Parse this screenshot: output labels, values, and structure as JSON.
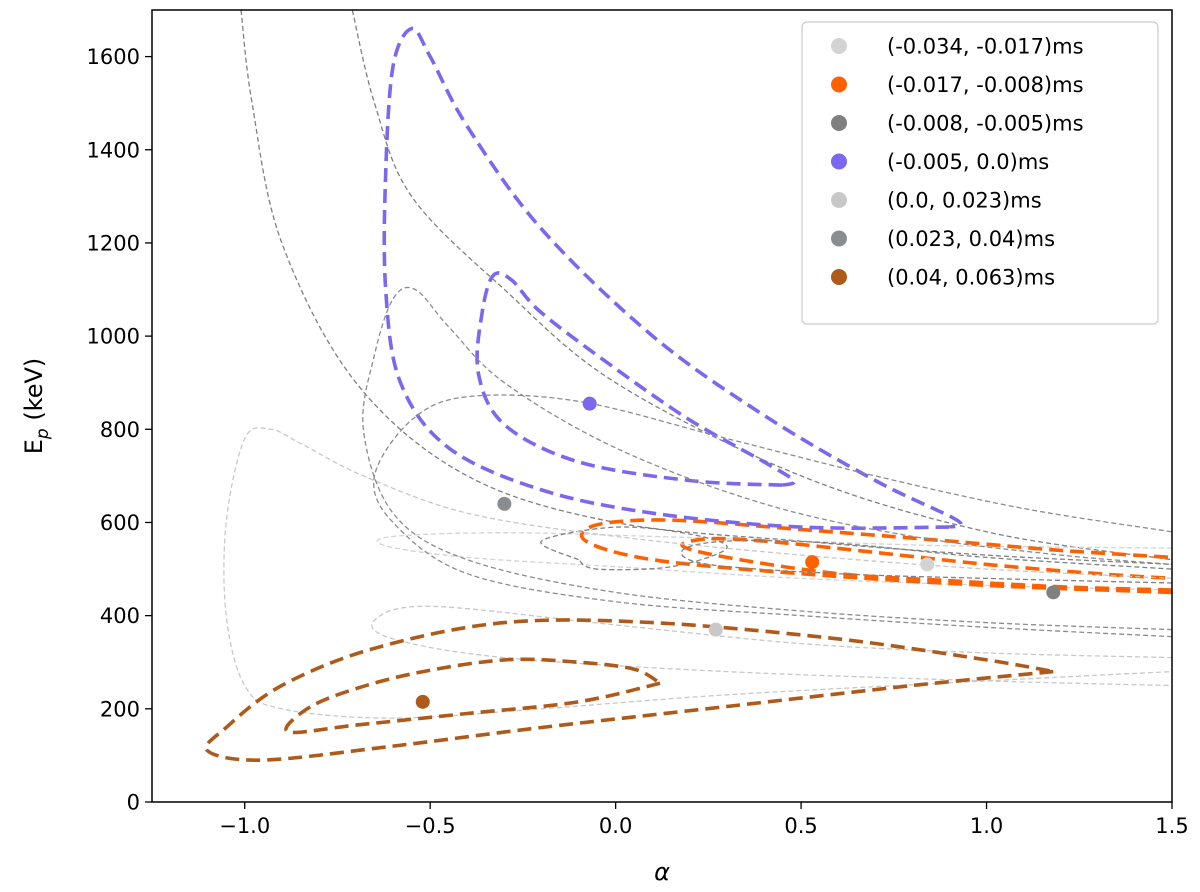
{
  "chart_data": {
    "type": "scatter",
    "xlabel": "α",
    "ylabel_main": "E",
    "ylabel_sub": "p",
    "ylabel_unit": " (keV)",
    "xlim": [
      -1.25,
      1.5
    ],
    "ylim": [
      0,
      1700
    ],
    "xticks": [
      -1.0,
      -0.5,
      0.0,
      0.5,
      1.0,
      1.5
    ],
    "xtick_labels": [
      "−1.0",
      "−0.5",
      "0.0",
      "0.5",
      "1.0",
      "1.5"
    ],
    "yticks": [
      0,
      200,
      400,
      600,
      800,
      1000,
      1200,
      1400,
      1600
    ],
    "ytick_labels": [
      "0",
      "200",
      "400",
      "600",
      "800",
      "1000",
      "1200",
      "1400",
      "1600"
    ],
    "grid": false,
    "legend_position": "top-right",
    "series": [
      {
        "name": "(-0.034, -0.017)ms",
        "color": "#d3d3d3",
        "style": "thin",
        "point": [
          0.84,
          510
        ],
        "contours": [
          [
            [
              1.5,
              545
            ],
            [
              0.9,
              550
            ],
            [
              0.5,
              560
            ],
            [
              0.1,
              570
            ],
            [
              -0.3,
              578
            ],
            [
              -0.6,
              570
            ],
            [
              -0.62,
              550
            ],
            [
              -0.4,
              525
            ],
            [
              0.0,
              505
            ],
            [
              0.5,
              480
            ],
            [
              1.0,
              465
            ],
            [
              1.5,
              455
            ]
          ]
        ]
      },
      {
        "name": "(-0.017, -0.008)ms",
        "color": "#ff6100",
        "style": "thick",
        "point": [
          0.53,
          515
        ],
        "contours": [
          [
            [
              1.5,
              455
            ],
            [
              1.2,
              462
            ],
            [
              0.9,
              475
            ],
            [
              0.6,
              490
            ],
            [
              0.3,
              525
            ],
            [
              0.18,
              550
            ],
            [
              0.25,
              565
            ],
            [
              0.4,
              560
            ],
            [
              0.65,
              540
            ],
            [
              1.0,
              510
            ],
            [
              1.3,
              490
            ],
            [
              1.5,
              480
            ]
          ],
          [
            [
              1.5,
              450
            ],
            [
              1.0,
              465
            ],
            [
              0.5,
              490
            ],
            [
              0.1,
              520
            ],
            [
              -0.08,
              560
            ],
            [
              -0.05,
              595
            ],
            [
              0.15,
              605
            ],
            [
              0.5,
              585
            ],
            [
              0.9,
              560
            ],
            [
              1.2,
              540
            ],
            [
              1.5,
              525
            ]
          ]
        ]
      },
      {
        "name": "(-0.008, -0.005)ms",
        "color": "#808080",
        "style": "thin",
        "point": [
          1.18,
          450
        ],
        "contours": [
          [
            [
              1.5,
              470
            ],
            [
              1.0,
              480
            ],
            [
              0.6,
              490
            ],
            [
              0.25,
              510
            ],
            [
              0.18,
              540
            ],
            [
              0.3,
              560
            ],
            [
              0.6,
              555
            ],
            [
              1.0,
              525
            ],
            [
              1.5,
              500
            ]
          ],
          [
            [
              -0.1,
              520
            ],
            [
              -0.2,
              560
            ],
            [
              0.0,
              590
            ],
            [
              0.2,
              575
            ],
            [
              0.3,
              545
            ],
            [
              0.15,
              505
            ],
            [
              -0.05,
              500
            ],
            [
              -0.1,
              520
            ]
          ]
        ]
      },
      {
        "name": "(-0.005, 0.0)ms",
        "color": "#7b68ee",
        "style": "thick",
        "point": [
          -0.07,
          855
        ],
        "contours": [
          [
            [
              0.45,
              680
            ],
            [
              0.2,
              690
            ],
            [
              -0.1,
              730
            ],
            [
              -0.3,
              810
            ],
            [
              -0.37,
              920
            ],
            [
              -0.36,
              1050
            ],
            [
              -0.33,
              1130
            ],
            [
              -0.28,
              1120
            ],
            [
              -0.2,
              1050
            ],
            [
              0.0,
              930
            ],
            [
              0.2,
              820
            ],
            [
              0.4,
              730
            ],
            [
              0.48,
              690
            ],
            [
              0.45,
              680
            ]
          ],
          [
            [
              0.9,
              590
            ],
            [
              0.5,
              590
            ],
            [
              0.1,
              620
            ],
            [
              -0.2,
              670
            ],
            [
              -0.45,
              760
            ],
            [
              -0.58,
              900
            ],
            [
              -0.62,
              1100
            ],
            [
              -0.62,
              1350
            ],
            [
              -0.6,
              1580
            ],
            [
              -0.55,
              1660
            ],
            [
              -0.5,
              1600
            ],
            [
              -0.4,
              1450
            ],
            [
              -0.2,
              1230
            ],
            [
              0.1,
              1000
            ],
            [
              0.4,
              830
            ],
            [
              0.7,
              690
            ],
            [
              0.92,
              605
            ],
            [
              0.9,
              590
            ]
          ]
        ]
      },
      {
        "name": "(0.0, 0.023)ms",
        "color": "#c8c8c8",
        "style": "thin",
        "point": [
          0.27,
          370
        ],
        "contours": [
          [
            [
              1.5,
              310
            ],
            [
              1.0,
              320
            ],
            [
              0.5,
              340
            ],
            [
              0.0,
              380
            ],
            [
              -0.5,
              420
            ],
            [
              -0.65,
              390
            ],
            [
              -0.6,
              350
            ],
            [
              -0.3,
              310
            ],
            [
              0.3,
              280
            ],
            [
              1.0,
              260
            ],
            [
              1.5,
              250
            ]
          ],
          [
            [
              1.5,
              480
            ],
            [
              1.0,
              500
            ],
            [
              0.5,
              530
            ],
            [
              0.0,
              570
            ],
            [
              -0.4,
              620
            ],
            [
              -0.68,
              700
            ],
            [
              -0.85,
              770
            ],
            [
              -0.93,
              800
            ],
            [
              -1.0,
              780
            ],
            [
              -1.05,
              600
            ],
            [
              -1.05,
              400
            ],
            [
              -1.0,
              250
            ],
            [
              -0.9,
              200
            ],
            [
              -0.6,
              180
            ],
            [
              -0.2,
              200
            ],
            [
              0.3,
              230
            ],
            [
              1.0,
              260
            ],
            [
              1.5,
              280
            ]
          ]
        ]
      },
      {
        "name": "(0.023, 0.04)ms",
        "color": "#8a8d8f",
        "style": "thin",
        "point": [
          -0.3,
          640
        ],
        "contours": [
          [
            [
              1.5,
              370
            ],
            [
              1.0,
              385
            ],
            [
              0.5,
              410
            ],
            [
              0.0,
              450
            ],
            [
              -0.4,
              520
            ],
            [
              -0.6,
              620
            ],
            [
              -0.68,
              800
            ],
            [
              -0.65,
              960
            ],
            [
              -0.6,
              1080
            ],
            [
              -0.54,
              1100
            ],
            [
              -0.45,
              1020
            ],
            [
              -0.3,
              900
            ],
            [
              0.0,
              760
            ],
            [
              0.4,
              640
            ],
            [
              0.8,
              570
            ],
            [
              1.2,
              530
            ],
            [
              1.5,
              510
            ]
          ],
          [
            [
              1.5,
              355
            ],
            [
              1.0,
              375
            ],
            [
              0.5,
              400
            ],
            [
              0.0,
              430
            ],
            [
              -0.4,
              490
            ],
            [
              -0.6,
              600
            ],
            [
              -0.65,
              700
            ],
            [
              -0.55,
              820
            ],
            [
              -0.4,
              870
            ],
            [
              -0.1,
              860
            ],
            [
              0.3,
              780
            ],
            [
              0.7,
              700
            ],
            [
              1.1,
              630
            ],
            [
              1.5,
              580
            ]
          ]
        ]
      },
      {
        "name": "(0.04, 0.063)ms",
        "color": "#ae5a1a",
        "style": "thick",
        "point": [
          -0.52,
          215
        ],
        "contours": [
          [
            [
              0.12,
              255
            ],
            [
              -0.1,
              215
            ],
            [
              -0.4,
              190
            ],
            [
              -0.7,
              165
            ],
            [
              -0.88,
              150
            ],
            [
              -0.85,
              190
            ],
            [
              -0.75,
              230
            ],
            [
              -0.55,
              275
            ],
            [
              -0.3,
              305
            ],
            [
              -0.1,
              300
            ],
            [
              0.05,
              285
            ],
            [
              0.12,
              255
            ]
          ],
          [
            [
              1.18,
              280
            ],
            [
              0.8,
              250
            ],
            [
              0.3,
              205
            ],
            [
              -0.2,
              160
            ],
            [
              -0.6,
              120
            ],
            [
              -0.95,
              90
            ],
            [
              -1.1,
              110
            ],
            [
              -1.05,
              160
            ],
            [
              -0.9,
              250
            ],
            [
              -0.65,
              330
            ],
            [
              -0.3,
              385
            ],
            [
              0.1,
              385
            ],
            [
              0.6,
              350
            ],
            [
              1.0,
              305
            ],
            [
              1.18,
              280
            ]
          ]
        ]
      }
    ],
    "extra_lines": [
      {
        "color": "#808080",
        "points": [
          [
            -1.01,
            1700
          ],
          [
            -0.98,
            1500
          ],
          [
            -0.9,
            1200
          ],
          [
            -0.7,
            900
          ],
          [
            -0.4,
            700
          ],
          [
            0.0,
            600
          ],
          [
            0.5,
            560
          ],
          [
            1.0,
            530
          ],
          [
            1.5,
            510
          ]
        ]
      },
      {
        "color": "#808080",
        "points": [
          [
            -0.71,
            1700
          ],
          [
            -0.65,
            1500
          ],
          [
            -0.55,
            1300
          ],
          [
            -0.3,
            1100
          ],
          [
            0.0,
            900
          ],
          [
            0.5,
            700
          ],
          [
            1.0,
            580
          ],
          [
            1.5,
            520
          ]
        ]
      }
    ]
  }
}
